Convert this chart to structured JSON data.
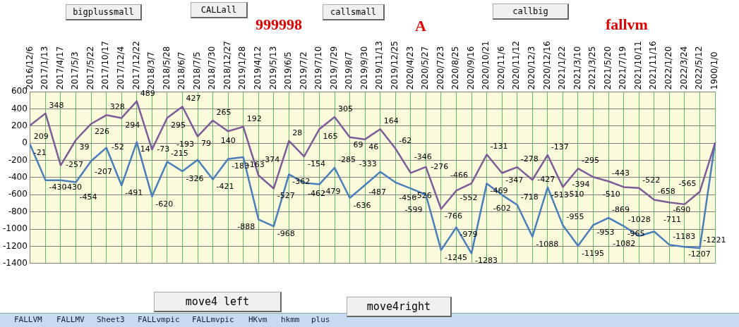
{
  "chart_data": {
    "type": "line",
    "categories": [
      "2016/12/6",
      "2017/1/13",
      "2017/4/17",
      "2017/5/3",
      "2017/5/22",
      "2017/10/17",
      "2017/12/4",
      "2017/12/22",
      "2018/3/7",
      "2018/5/28",
      "2018/6/7",
      "2018/7/5",
      "2018/7/30",
      "2018/12/27",
      "2019/1/28",
      "2019/4/12",
      "2019/5/13",
      "2019/6/5",
      "2019/7/2",
      "2019/7/10",
      "2019/7/29",
      "2019/8/7",
      "2019/9/30",
      "2019/11/13",
      "2019/12/25",
      "2020/4/23",
      "2020/5/27",
      "2020/7/23",
      "2020/8/25",
      "2020/9/16",
      "2020/10/21",
      "2020/11/6",
      "2020/11/12",
      "2020/12/3",
      "2020/12/16",
      "2021/1/22",
      "2021/3/10",
      "2021/3/25",
      "2021/5/20",
      "2021/7/19",
      "2021/10/11",
      "2021/11/16",
      "2022/1/20",
      "2022/3/24",
      "2022/5/12",
      "1900/1/0"
    ],
    "series": [
      {
        "color": "#7d5b98",
        "values": [
          209,
          348,
          -257,
          39,
          226,
          328,
          294,
          489,
          -73,
          295,
          427,
          79,
          265,
          140,
          192,
          -374,
          -527,
          28,
          -154,
          165,
          305,
          69,
          46,
          164,
          -62,
          -346,
          -276,
          -766,
          -552,
          -466,
          -131,
          -347,
          -278,
          -427,
          -137,
          -510,
          -295,
          -394,
          -443,
          -510,
          -522,
          -658,
          -690,
          -711,
          -565,
          0
        ],
        "value_labels": [
          "209",
          "348",
          "-257",
          "39",
          "226",
          "328",
          "294",
          "489",
          "-73",
          "295",
          "427",
          "79",
          "265",
          "140",
          "192",
          "-374",
          "-527",
          "28",
          "-154",
          "165",
          "305",
          "69",
          "46",
          "164",
          "-62",
          "-346",
          "-276",
          "-766",
          "-552",
          "-466",
          "-131",
          "-347",
          "-278",
          "-427",
          "-137",
          "-510",
          "-295",
          "-394",
          "-443",
          "-510",
          "-522",
          "-658",
          "-690",
          "-711",
          "-565",
          null
        ]
      },
      {
        "color": "#4a7ebb",
        "values": [
          -21,
          -430,
          -430,
          -454,
          -207,
          -52,
          -491,
          14,
          -620,
          -215,
          -326,
          -193,
          -421,
          -183,
          -163,
          -888,
          -968,
          -362,
          -462,
          -479,
          -285,
          -636,
          -487,
          -333,
          -456,
          -526,
          -599,
          -1245,
          -979,
          -1283,
          -469,
          -602,
          -718,
          -1088,
          -513,
          -955,
          -1195,
          -953,
          -869,
          -965,
          -1082,
          -1028,
          -1183,
          -1207,
          -1221,
          0
        ],
        "value_labels": [
          "-21",
          "-430",
          "-430",
          "-454",
          "-207",
          "-52",
          "-491",
          "14",
          "-620",
          "-215",
          "-326",
          "-193",
          "-421",
          "-183",
          "-163",
          "-888",
          "-968",
          "-362",
          "-462",
          "-479",
          "-285",
          "-636",
          "-487",
          "-333",
          "-456",
          "-526",
          "-599",
          "-1245",
          "-979",
          "-1283",
          "-469",
          "-602",
          "-718",
          "-1088",
          "-513",
          "-955",
          "-1195",
          "-953",
          "-869",
          "-965",
          "-1082",
          "-1028",
          "-1183",
          "-1207",
          "-1221",
          null
        ]
      }
    ],
    "ylim": [
      -1400,
      600
    ],
    "yticks": [
      -1400,
      -1200,
      -1000,
      -800,
      -600,
      -400,
      -200,
      0,
      200,
      400,
      600
    ],
    "grid": true,
    "legend": false,
    "marker": "none",
    "line_style": "solid",
    "annotations": [
      "bigplussmall",
      "CALLall",
      "999998",
      "callsmall",
      "A",
      "callbig",
      "fallvm",
      "move4 left",
      "move4right",
      "FALLVM",
      "FALLMV",
      "Sheet3",
      "FALLvmpic",
      "FALLmvpic",
      "HKvm",
      "hkmm",
      "plus"
    ]
  }
}
